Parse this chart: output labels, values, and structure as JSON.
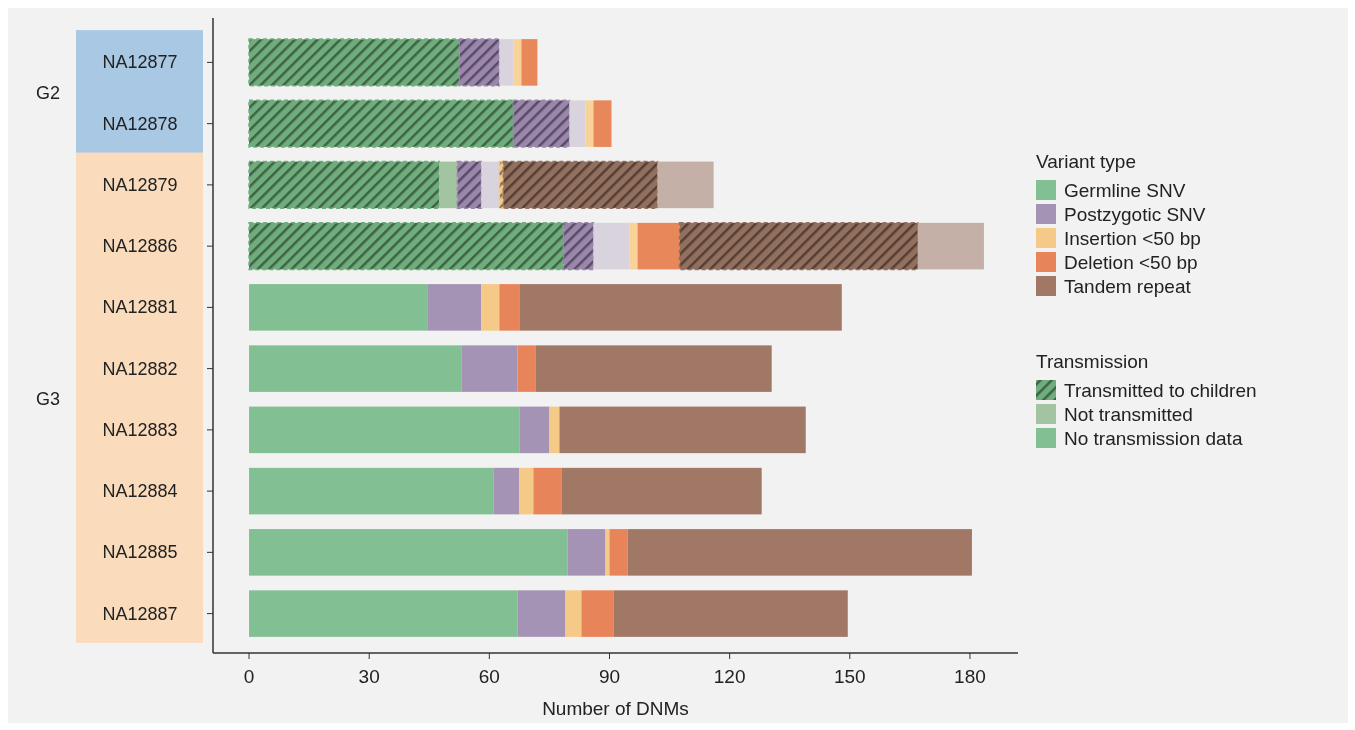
{
  "chart_data": {
    "type": "bar",
    "orientation": "horizontal",
    "stacked": true,
    "xlabel": "Number of DNMs",
    "legend_title": "Variant type",
    "legend": "right",
    "categories": [
      "NA12877",
      "NA12878",
      "NA12879",
      "NA12886",
      "NA12881",
      "NA12882",
      "NA12883",
      "NA12884",
      "NA12885",
      "NA12887"
    ],
    "xlim": [
      -9,
      192
    ],
    "xticks": [
      0,
      30,
      60,
      90,
      120,
      150,
      180
    ],
    "annotations": [
      "G2",
      "G3",
      "Transmission",
      "Transmitted to children",
      "Not transmitted",
      "No transmission data"
    ],
    "series": [
      {
        "color": "#6fae7c",
        "line_style": "dashed",
        "values": [
          52.5,
          66,
          47.5,
          78.5,
          null,
          null,
          null,
          null,
          null,
          null
        ]
      },
      {
        "color": "#a3c4a0",
        "values": [
          null,
          null,
          4.5,
          null,
          null,
          null,
          null,
          null,
          null,
          null
        ]
      },
      {
        "name": "Germline SNV",
        "color": "#82bf92",
        "values": [
          null,
          null,
          null,
          null,
          44.5,
          53,
          67.5,
          61,
          79.5,
          67
        ]
      },
      {
        "color": "#9b87ad",
        "line_style": "dashed",
        "values": [
          10,
          14,
          6,
          7.5,
          null,
          null,
          null,
          null,
          null,
          null
        ]
      },
      {
        "color": "#d8d3dc",
        "values": [
          3.5,
          4,
          4.5,
          9,
          null,
          null,
          null,
          null,
          null,
          null
        ]
      },
      {
        "name": "Postzygotic SNV",
        "color": "#a593b5",
        "values": [
          null,
          null,
          null,
          null,
          13.5,
          14,
          7.5,
          6.5,
          9.5,
          12
        ]
      },
      {
        "color": "#f5c987",
        "line_style": "dashed",
        "values": [
          null,
          null,
          1,
          null,
          null,
          null,
          null,
          null,
          null,
          null
        ]
      },
      {
        "color": "#f7d39a",
        "values": [
          2,
          2,
          null,
          2,
          null,
          null,
          null,
          null,
          null,
          null
        ]
      },
      {
        "name": "Insertion <50 bp",
        "color": "#f5c987",
        "values": [
          null,
          null,
          null,
          null,
          4.5,
          null,
          2.5,
          3.5,
          1,
          4
        ]
      },
      {
        "color": "#e8875a",
        "values": [
          4,
          4.5,
          null,
          10.5,
          null,
          null,
          null,
          null,
          null,
          null
        ]
      },
      {
        "name": "Deletion <50 bp",
        "color": "#e8845a",
        "values": [
          null,
          null,
          null,
          null,
          5,
          4.5,
          null,
          7,
          4.5,
          8
        ]
      },
      {
        "color": "#93705e",
        "line_style": "dashed",
        "values": [
          null,
          null,
          38.5,
          59.5,
          null,
          null,
          null,
          null,
          null,
          null
        ]
      },
      {
        "color": "#c4b0a6",
        "values": [
          null,
          null,
          14,
          16.5,
          null,
          null,
          null,
          null,
          null,
          null
        ]
      },
      {
        "name": "Tandem repeat",
        "color": "#a07865",
        "values": [
          null,
          null,
          null,
          null,
          80.5,
          59,
          61.5,
          50,
          86,
          58.5
        ]
      }
    ]
  }
}
